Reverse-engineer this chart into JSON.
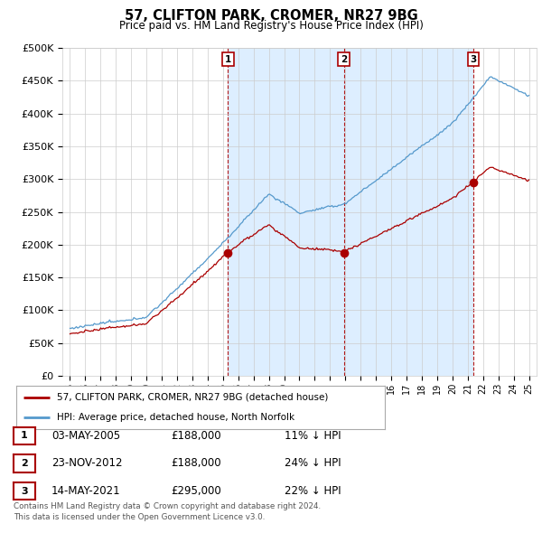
{
  "title": "57, CLIFTON PARK, CROMER, NR27 9BG",
  "subtitle": "Price paid vs. HM Land Registry's House Price Index (HPI)",
  "ylim": [
    0,
    500000
  ],
  "yticks": [
    0,
    50000,
    100000,
    150000,
    200000,
    250000,
    300000,
    350000,
    400000,
    450000,
    500000
  ],
  "sale_color": "#aa0000",
  "hpi_color": "#5599cc",
  "shade_color": "#ddeeff",
  "background_color": "#ffffff",
  "grid_color": "#cccccc",
  "sale_points": [
    {
      "date_num": 2005.33,
      "price": 188000,
      "label": "1"
    },
    {
      "date_num": 2012.9,
      "price": 188000,
      "label": "2"
    },
    {
      "date_num": 2021.36,
      "price": 295000,
      "label": "3"
    }
  ],
  "legend_sale_label": "57, CLIFTON PARK, CROMER, NR27 9BG (detached house)",
  "legend_hpi_label": "HPI: Average price, detached house, North Norfolk",
  "table_rows": [
    {
      "num": "1",
      "date": "03-MAY-2005",
      "price": "£188,000",
      "hpi": "11% ↓ HPI"
    },
    {
      "num": "2",
      "date": "23-NOV-2012",
      "price": "£188,000",
      "hpi": "24% ↓ HPI"
    },
    {
      "num": "3",
      "date": "14-MAY-2021",
      "price": "£295,000",
      "hpi": "22% ↓ HPI"
    }
  ],
  "footnote": "Contains HM Land Registry data © Crown copyright and database right 2024.\nThis data is licensed under the Open Government Licence v3.0.",
  "xmin": 1994.5,
  "xmax": 2025.5
}
